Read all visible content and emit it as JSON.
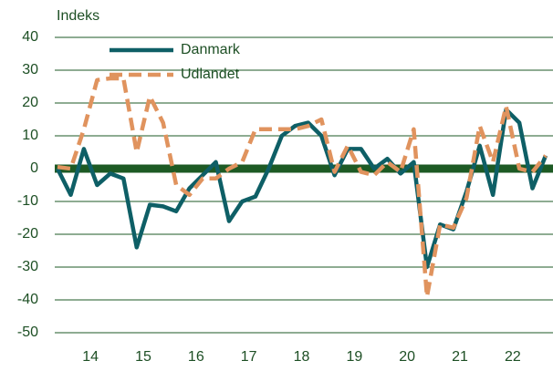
{
  "chart_data": {
    "type": "line",
    "title": "Indeks",
    "categories": [
      null,
      null,
      null,
      "14",
      null,
      null,
      null,
      "15",
      null,
      null,
      null,
      "16",
      null,
      null,
      null,
      "17",
      null,
      null,
      null,
      "18",
      null,
      null,
      null,
      "19",
      null,
      null,
      null,
      "20",
      null,
      null,
      null,
      "21",
      null,
      null,
      null,
      "22",
      null,
      null
    ],
    "series": [
      {
        "name": "Danmark",
        "color": "#0e5f66",
        "dashed": false,
        "values": [
          0,
          -8,
          6,
          -5,
          -1.5,
          -3,
          -24,
          -11,
          -11.5,
          -13,
          -6,
          -2,
          2,
          -16,
          -10,
          -8.5,
          0,
          10,
          13,
          14,
          10,
          -2,
          6,
          6,
          0,
          3,
          -1.5,
          2,
          -30,
          -17,
          -18.5,
          -7,
          7,
          -8,
          18,
          14,
          -6,
          4
        ]
      },
      {
        "name": "Udlandet",
        "color": "#e0935e",
        "dashed": true,
        "values": [
          0.5,
          0,
          12,
          27,
          27.5,
          27.5,
          5,
          22,
          14,
          -5,
          -8,
          -3,
          -3,
          0,
          2,
          12,
          12,
          12,
          12,
          13,
          15,
          -1,
          7,
          -1,
          -2,
          2,
          -1,
          12,
          -39,
          -17,
          -18,
          -9,
          13,
          2,
          19,
          0,
          -1,
          4
        ]
      }
    ],
    "ylim": [
      -50,
      40
    ],
    "yticks": [
      -50,
      -40,
      -30,
      -20,
      -10,
      0,
      10,
      20,
      30,
      40
    ],
    "grid": true,
    "zero_line": true,
    "legend": "top-left"
  }
}
